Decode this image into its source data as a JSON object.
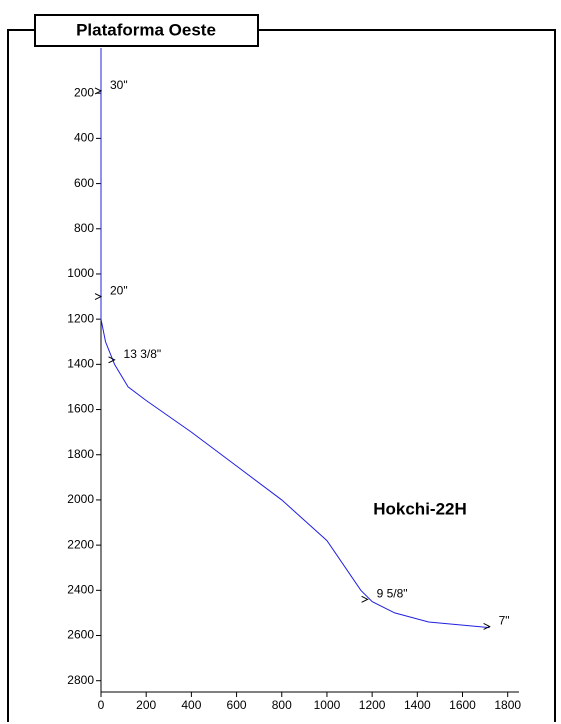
{
  "chart_data": {
    "type": "line",
    "title": "Plataforma Oeste",
    "well_label": "Hokchi-22H",
    "x": [
      0,
      0,
      20,
      60,
      120,
      200,
      400,
      600,
      800,
      1000,
      1150,
      1200,
      1300,
      1450,
      1720
    ],
    "values": [
      0,
      1200,
      1300,
      1400,
      1500,
      1560,
      1700,
      1850,
      2000,
      2180,
      2400,
      2450,
      2500,
      2540,
      2565
    ],
    "color": "#2020e0",
    "xlim": [
      0,
      1850
    ],
    "ylim": [
      0,
      2850
    ],
    "y_inverted": true,
    "xticks": [
      0,
      200,
      400,
      600,
      800,
      1000,
      1200,
      1400,
      1600,
      1800
    ],
    "yticks": [
      200,
      400,
      600,
      800,
      1000,
      1200,
      1400,
      1600,
      1800,
      2000,
      2200,
      2400,
      2600,
      2800
    ],
    "annotations": [
      {
        "text": "30\"",
        "x": 0,
        "y": 190
      },
      {
        "text": "20\"",
        "x": 0,
        "y": 1100
      },
      {
        "text": "13 3/8\"",
        "x": 60,
        "y": 1380
      },
      {
        "text": "9 5/8\"",
        "x": 1180,
        "y": 2440
      },
      {
        "text": "7\"",
        "x": 1720,
        "y": 2560
      }
    ]
  }
}
